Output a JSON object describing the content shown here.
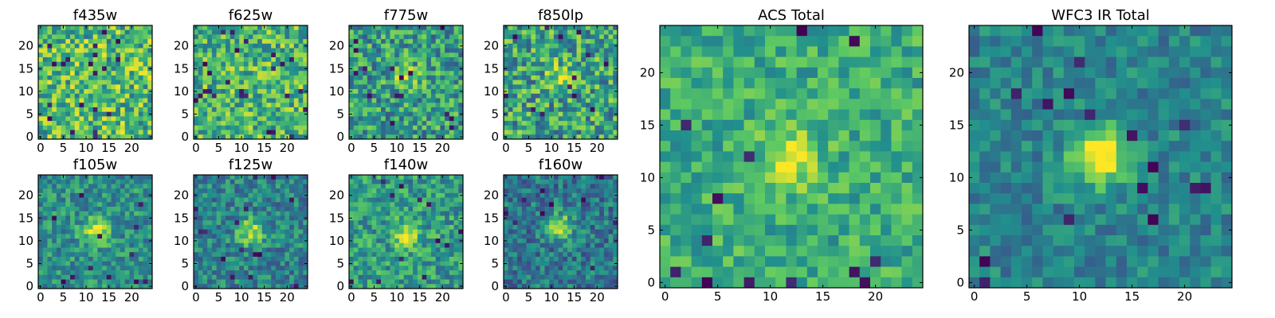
{
  "figure": {
    "colormap": "viridis",
    "colormap_stops": [
      "#440154",
      "#3b528b",
      "#21908d",
      "#5dc963",
      "#fde725"
    ]
  },
  "chart_data": [
    {
      "type": "heatmap",
      "title": "f435w",
      "size": 25,
      "x_ticks": [
        "0",
        "5",
        "10",
        "15",
        "20"
      ],
      "y_ticks": [
        "0",
        "5",
        "10",
        "15",
        "20"
      ],
      "xlim": [
        -0.5,
        24.5
      ],
      "ylim": [
        -0.5,
        24.5
      ],
      "source_peak": [
        12,
        12
      ],
      "source_strength": 0.0,
      "noise": 0.3,
      "background": 0.68,
      "dark_pixel_fraction": 0.035,
      "seed": 11
    },
    {
      "type": "heatmap",
      "title": "f625w",
      "size": 25,
      "x_ticks": [
        "0",
        "5",
        "10",
        "15",
        "20"
      ],
      "y_ticks": [
        "0",
        "5",
        "10",
        "15",
        "20"
      ],
      "xlim": [
        -0.5,
        24.5
      ],
      "ylim": [
        -0.5,
        24.5
      ],
      "source_peak": [
        12,
        12
      ],
      "source_strength": 0.05,
      "noise": 0.28,
      "background": 0.66,
      "dark_pixel_fraction": 0.03,
      "seed": 23
    },
    {
      "type": "heatmap",
      "title": "f775w",
      "size": 25,
      "x_ticks": [
        "0",
        "5",
        "10",
        "15",
        "20"
      ],
      "y_ticks": [
        "0",
        "5",
        "10",
        "15",
        "20"
      ],
      "xlim": [
        -0.5,
        24.5
      ],
      "ylim": [
        -0.5,
        24.5
      ],
      "source_peak": [
        12,
        13
      ],
      "source_strength": 0.3,
      "noise": 0.28,
      "background": 0.55,
      "dark_pixel_fraction": 0.025,
      "seed": 37
    },
    {
      "type": "heatmap",
      "title": "f850lp",
      "size": 25,
      "x_ticks": [
        "0",
        "5",
        "10",
        "15",
        "20"
      ],
      "y_ticks": [
        "0",
        "5",
        "10",
        "15",
        "20"
      ],
      "xlim": [
        -0.5,
        24.5
      ],
      "ylim": [
        -0.5,
        24.5
      ],
      "source_peak": [
        12,
        13
      ],
      "source_strength": 0.25,
      "noise": 0.3,
      "background": 0.58,
      "dark_pixel_fraction": 0.02,
      "seed": 41
    },
    {
      "type": "heatmap",
      "title": "f105w",
      "size": 25,
      "x_ticks": [
        "0",
        "5",
        "10",
        "15",
        "20"
      ],
      "y_ticks": [
        "0",
        "5",
        "10",
        "15",
        "20"
      ],
      "xlim": [
        -0.5,
        24.5
      ],
      "ylim": [
        -0.5,
        24.5
      ],
      "source_peak": [
        12,
        12
      ],
      "source_strength": 0.45,
      "noise": 0.2,
      "background": 0.5,
      "dark_pixel_fraction": 0.02,
      "seed": 53
    },
    {
      "type": "heatmap",
      "title": "f125w",
      "size": 25,
      "x_ticks": [
        "0",
        "5",
        "10",
        "15",
        "20"
      ],
      "y_ticks": [
        "0",
        "5",
        "10",
        "15",
        "20"
      ],
      "xlim": [
        -0.5,
        24.5
      ],
      "ylim": [
        -0.5,
        24.5
      ],
      "source_peak": [
        12,
        12
      ],
      "source_strength": 0.45,
      "noise": 0.2,
      "background": 0.45,
      "dark_pixel_fraction": 0.02,
      "seed": 67
    },
    {
      "type": "heatmap",
      "title": "f140w",
      "size": 25,
      "x_ticks": [
        "0",
        "5",
        "10",
        "15",
        "20"
      ],
      "y_ticks": [
        "0",
        "5",
        "10",
        "15",
        "20"
      ],
      "xlim": [
        -0.5,
        24.5
      ],
      "ylim": [
        -0.5,
        24.5
      ],
      "source_peak": [
        12,
        11
      ],
      "source_strength": 0.4,
      "noise": 0.22,
      "background": 0.55,
      "dark_pixel_fraction": 0.015,
      "seed": 71
    },
    {
      "type": "heatmap",
      "title": "f160w",
      "size": 25,
      "x_ticks": [
        "0",
        "5",
        "10",
        "15",
        "20"
      ],
      "y_ticks": [
        "0",
        "5",
        "10",
        "15",
        "20"
      ],
      "xlim": [
        -0.5,
        24.5
      ],
      "ylim": [
        -0.5,
        24.5
      ],
      "source_peak": [
        12,
        13
      ],
      "source_strength": 0.5,
      "noise": 0.2,
      "background": 0.4,
      "dark_pixel_fraction": 0.015,
      "seed": 83
    },
    {
      "type": "heatmap",
      "title": "ACS Total",
      "size": 25,
      "x_ticks": [
        "0",
        "5",
        "10",
        "15",
        "20"
      ],
      "y_ticks": [
        "0",
        "5",
        "10",
        "15",
        "20"
      ],
      "xlim": [
        -0.5,
        24.5
      ],
      "ylim": [
        -0.5,
        24.5
      ],
      "source_peak": [
        12,
        12
      ],
      "source_strength": 0.3,
      "noise": 0.18,
      "background": 0.62,
      "dark_pixel_fraction": 0.025,
      "seed": 97
    },
    {
      "type": "heatmap",
      "title": "WFC3 IR Total",
      "size": 25,
      "x_ticks": [
        "0",
        "5",
        "10",
        "15",
        "20"
      ],
      "y_ticks": [
        "0",
        "5",
        "10",
        "15",
        "20"
      ],
      "xlim": [
        -0.5,
        24.5
      ],
      "ylim": [
        -0.5,
        24.5
      ],
      "source_peak": [
        12,
        12
      ],
      "source_strength": 0.6,
      "noise": 0.15,
      "background": 0.45,
      "dark_pixel_fraction": 0.02,
      "seed": 101
    }
  ]
}
